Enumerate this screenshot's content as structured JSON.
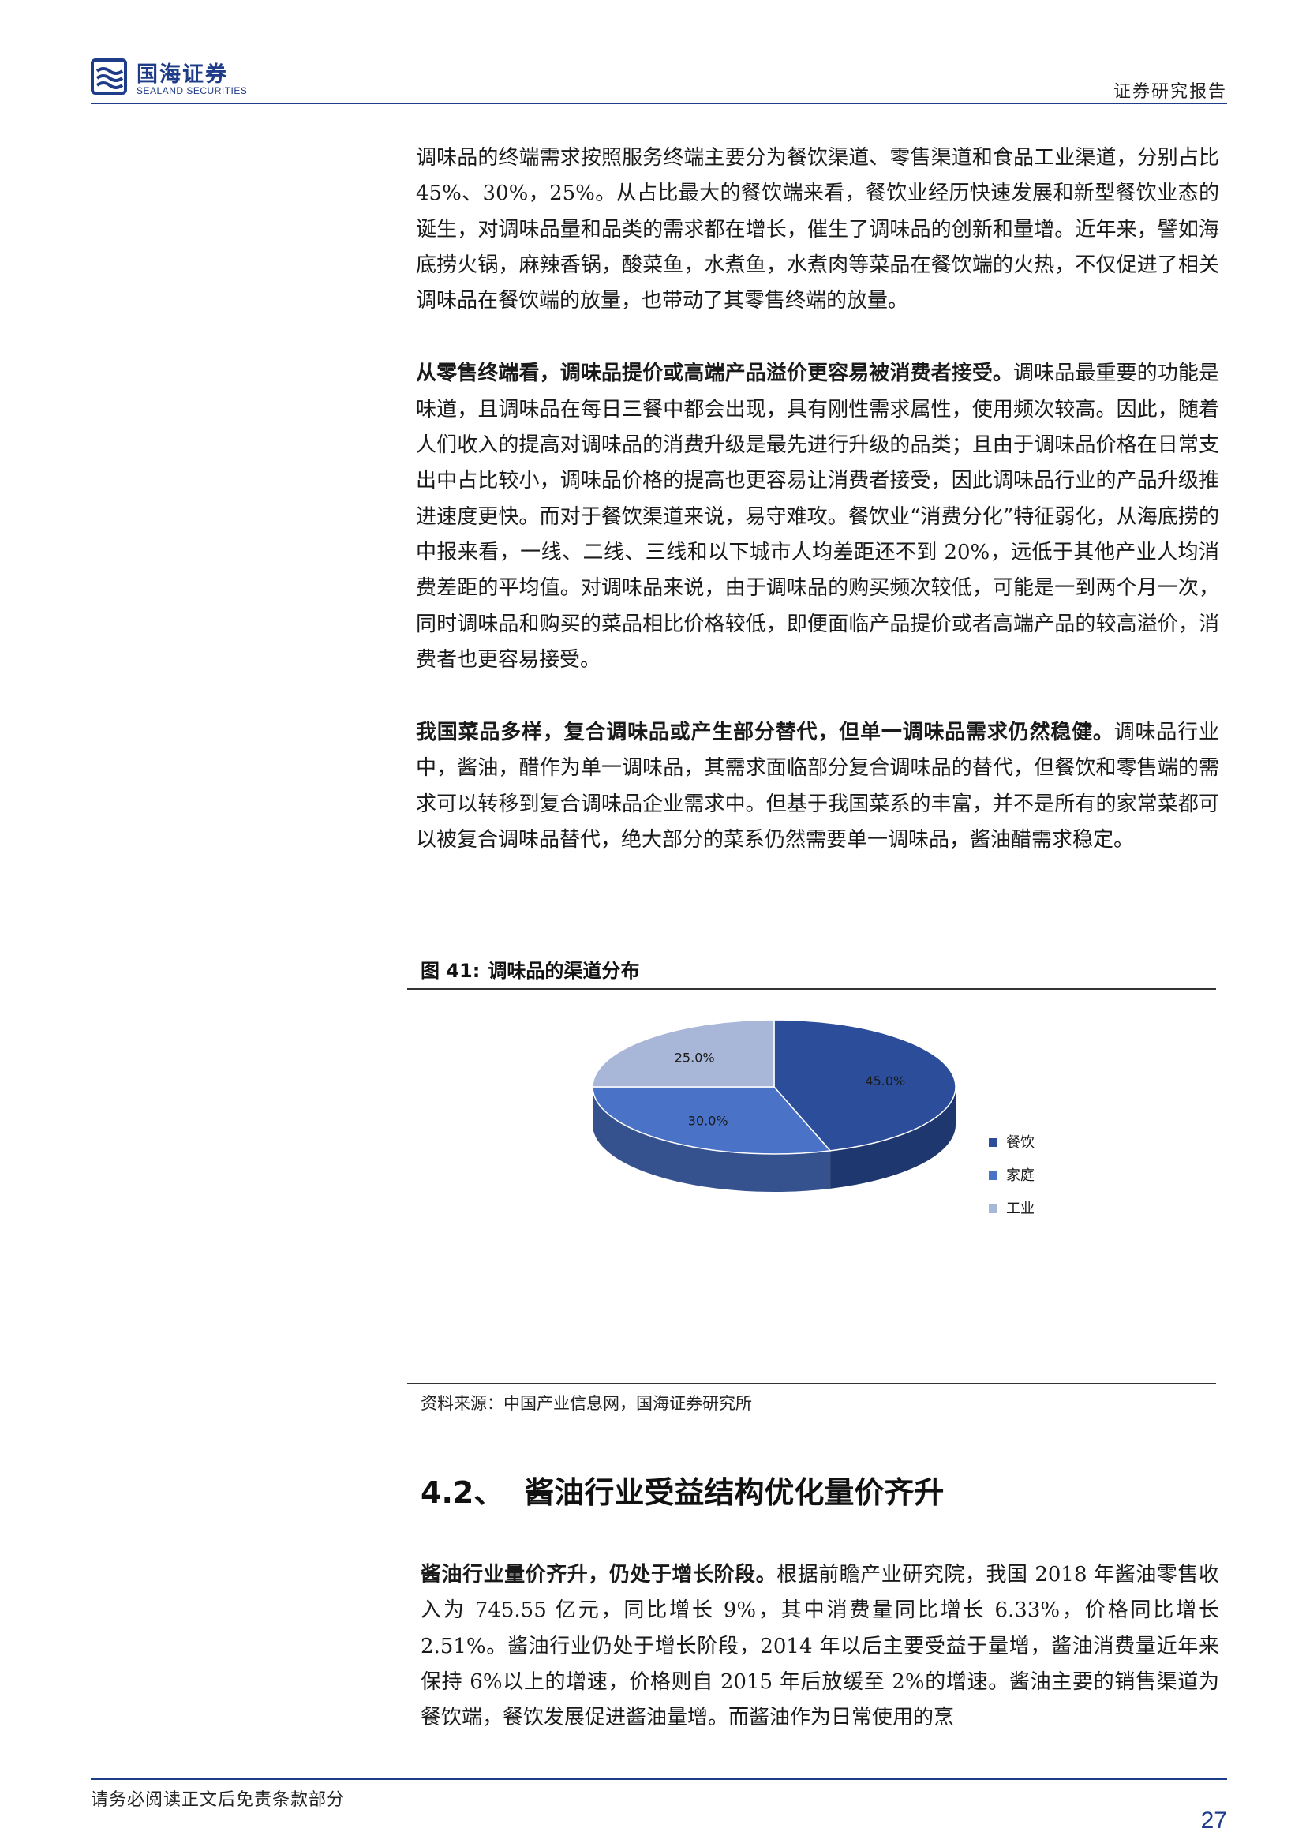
{
  "header": {
    "logo_cn": "国海证券",
    "logo_en": "SEALAND SECURITIES",
    "report_type": "证券研究报告"
  },
  "paragraphs": [
    {
      "bold": "",
      "text": "调味品的终端需求按照服务终端主要分为餐饮渠道、零售渠道和食品工业渠道，分别占比 45%、30%，25%。从占比最大的餐饮端来看，餐饮业经历快速发展和新型餐饮业态的诞生，对调味品量和品类的需求都在增长，催生了调味品的创新和量增。近年来，譬如海底捞火锅，麻辣香锅，酸菜鱼，水煮鱼，水煮肉等菜品在餐饮端的火热，不仅促进了相关调味品在餐饮端的放量，也带动了其零售终端的放量。"
    },
    {
      "bold": "从零售终端看，调味品提价或高端产品溢价更容易被消费者接受。",
      "text": "调味品最重要的功能是味道，且调味品在每日三餐中都会出现，具有刚性需求属性，使用频次较高。因此，随着人们收入的提高对调味品的消费升级是最先进行升级的品类；且由于调味品价格在日常支出中占比较小，调味品价格的提高也更容易让消费者接受，因此调味品行业的产品升级推进速度更快。而对于餐饮渠道来说，易守难攻。餐饮业“消费分化”特征弱化，从海底捞的中报来看，一线、二线、三线和以下城市人均差距还不到 20%，远低于其他产业人均消费差距的平均值。对调味品来说，由于调味品的购买频次较低，可能是一到两个月一次，同时调味品和购买的菜品相比价格较低，即便面临产品提价或者高端产品的较高溢价，消费者也更容易接受。"
    },
    {
      "bold": "我国菜品多样，复合调味品或产生部分替代，但单一调味品需求仍然稳健。",
      "text": "调味品行业中，酱油，醋作为单一调味品，其需求面临部分复合调味品的替代，但餐饮和零售端的需求可以转移到复合调味品企业需求中。但基于我国菜系的丰富，并不是所有的家常菜都可以被复合调味品替代，绝大部分的菜系仍然需要单一调味品，酱油醋需求稳定。"
    }
  ],
  "figure": {
    "label": "图 41:",
    "title": "调味品的渠道分布",
    "source": "资料来源：中国产业信息网，国海证券研究所"
  },
  "chart_data": {
    "type": "pie",
    "categories": [
      "餐饮",
      "家庭",
      "工业"
    ],
    "values": [
      45.0,
      30.0,
      25.0
    ],
    "labels": [
      "45.0%",
      "30.0%",
      "25.0%"
    ],
    "colors": [
      "#2b4d9a",
      "#4a72c6",
      "#a8b6d8"
    ],
    "legend_position": "right"
  },
  "section": {
    "number": "4.2、",
    "title": "酱油行业受益结构优化量价齐升"
  },
  "section_paragraph": {
    "bold": "酱油行业量价齐升，仍处于增长阶段。",
    "text": "根据前瞻产业研究院，我国 2018 年酱油零售收入为 745.55 亿元，同比增长 9%，其中消费量同比增长 6.33%，价格同比增长 2.51%。酱油行业仍处于增长阶段，2014 年以后主要受益于量增，酱油消费量近年来保持 6%以上的增速，价格则自 2015 年后放缓至 2%的增速。酱油主要的销售渠道为餐饮端，餐饮发展促进酱油量增。而酱油作为日常使用的烹"
  },
  "footer": {
    "disclaimer": "请务必阅读正文后免责条款部分",
    "page": "27"
  }
}
